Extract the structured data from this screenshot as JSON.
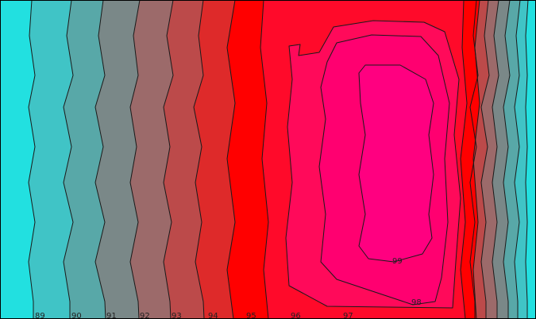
{
  "chart_data": {
    "type": "heatmap",
    "title": "",
    "xlabel": "",
    "ylabel": "",
    "contour_levels": [
      89,
      90,
      91,
      92,
      93,
      94,
      95,
      96,
      97,
      98,
      99
    ],
    "contour_labels": [
      "89",
      "90",
      "91",
      "92",
      "93",
      "94",
      "95",
      "96",
      "97",
      "98",
      "99"
    ],
    "bands": [
      {
        "level": 88,
        "color": "#22e0e0"
      },
      {
        "level": 89,
        "color": "#40c4c6"
      },
      {
        "level": 90,
        "color": "#58a8a8"
      },
      {
        "level": 91,
        "color": "#7a8888"
      },
      {
        "level": 92,
        "color": "#9c6a6a"
      },
      {
        "level": 93,
        "color": "#bc4a4a"
      },
      {
        "level": 94,
        "color": "#de2a2a"
      },
      {
        "level": 95,
        "color": "#ff0000"
      },
      {
        "level": 96,
        "color": "#ff0a2a"
      },
      {
        "level": 97,
        "color": "#ff0a5a"
      },
      {
        "level": 98,
        "color": "#ff0070"
      },
      {
        "level": 99,
        "color": "#ff0080"
      }
    ],
    "legend": "none",
    "grid": false
  }
}
